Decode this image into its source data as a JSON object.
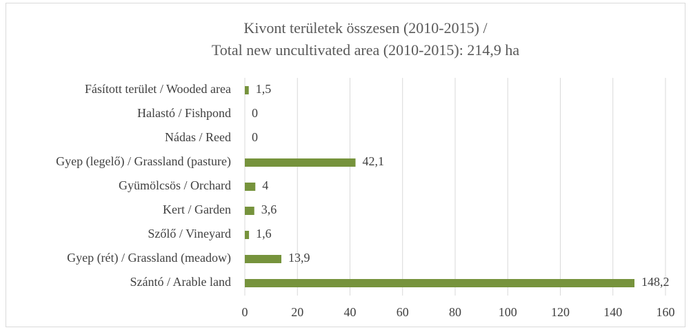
{
  "chart_data": {
    "type": "bar",
    "orientation": "horizontal",
    "title": "Kivont területek összesen (2010-2015)  /",
    "subtitle": "Total new uncultivated area (2010-2015):  214,9 ha",
    "categories": [
      "Fásított terület / Wooded area",
      "Halastó / Fishpond",
      "Nádas / Reed",
      "Gyep (legelő) / Grassland (pasture)",
      "Gyümölcsös / Orchard",
      "Kert / Garden",
      "Szőlő / Vineyard",
      "Gyep (rét) / Grassland (meadow)",
      "Szántó / Arable land"
    ],
    "values": [
      1.5,
      0,
      0,
      42.1,
      4,
      3.6,
      1.6,
      13.9,
      148.2
    ],
    "value_labels": [
      "1,5",
      "0",
      "0",
      "42,1",
      "4",
      "3,6",
      "1,6",
      "13,9",
      "148,2"
    ],
    "color": "#76933c",
    "xlim": [
      0,
      160
    ],
    "xticks": [
      0,
      20,
      40,
      60,
      80,
      100,
      120,
      140,
      160
    ],
    "grid": true
  }
}
